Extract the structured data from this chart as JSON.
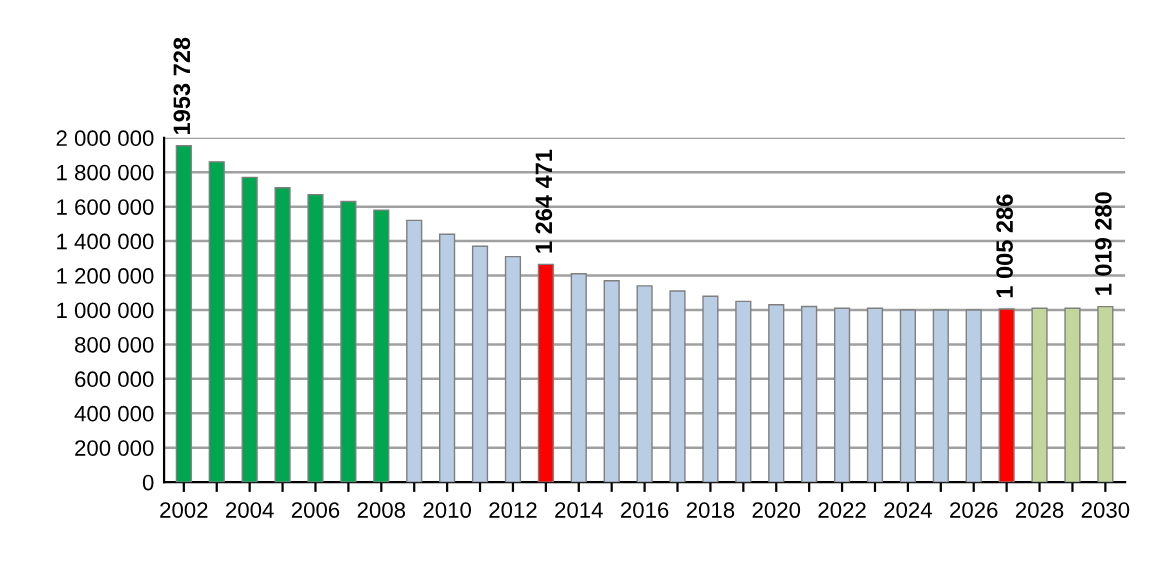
{
  "chart_data": {
    "type": "bar",
    "categories": [
      "2002",
      null,
      "2004",
      null,
      "2006",
      null,
      "2008",
      null,
      "2010",
      null,
      "2012",
      null,
      "2014",
      null,
      "2016",
      null,
      "2018",
      null,
      "2020",
      null,
      "2022",
      null,
      "2024",
      null,
      "2026",
      null,
      "2028",
      null,
      "2030"
    ],
    "values": [
      1953728,
      1860000,
      1770000,
      1710000,
      1670000,
      1630000,
      1580000,
      1520000,
      1440000,
      1370000,
      1310000,
      1264471,
      1210000,
      1170000,
      1140000,
      1110000,
      1080000,
      1050000,
      1030000,
      1020000,
      1010000,
      1010000,
      1000000,
      1000000,
      1000000,
      1005286,
      1010000,
      1010000,
      1019280
    ],
    "colors": [
      "#00a650",
      "#00a650",
      "#00a650",
      "#00a650",
      "#00a650",
      "#00a650",
      "#00a650",
      "#b9cde5",
      "#b9cde5",
      "#b9cde5",
      "#b9cde5",
      "#ff0000",
      "#b9cde5",
      "#b9cde5",
      "#b9cde5",
      "#b9cde5",
      "#b9cde5",
      "#b9cde5",
      "#b9cde5",
      "#b9cde5",
      "#b9cde5",
      "#b9cde5",
      "#b9cde5",
      "#b9cde5",
      "#b9cde5",
      "#ff0000",
      "#c3d69b",
      "#c3d69b",
      "#c3d69b"
    ],
    "value_labels": [
      "1953 728",
      null,
      null,
      null,
      null,
      null,
      null,
      null,
      null,
      null,
      null,
      "1 264 471",
      null,
      null,
      null,
      null,
      null,
      null,
      null,
      null,
      null,
      null,
      null,
      null,
      null,
      "1 005 286",
      null,
      null,
      "1 019 280"
    ],
    "ylim": [
      0,
      2000000
    ],
    "yticks": [
      {
        "value": 0,
        "label": "0"
      },
      {
        "value": 200000,
        "label": "200 000"
      },
      {
        "value": 400000,
        "label": "400 000"
      },
      {
        "value": 600000,
        "label": "600 000"
      },
      {
        "value": 800000,
        "label": "800 000"
      },
      {
        "value": 1000000,
        "label": "1 000 000"
      },
      {
        "value": 1200000,
        "label": "1 200 000"
      },
      {
        "value": 1400000,
        "label": "1 400 000"
      },
      {
        "value": 1600000,
        "label": "1 600 000"
      },
      {
        "value": 1800000,
        "label": "1 800 000"
      },
      {
        "value": 2000000,
        "label": "2 000 000"
      }
    ],
    "grid": "y",
    "legend": false
  }
}
